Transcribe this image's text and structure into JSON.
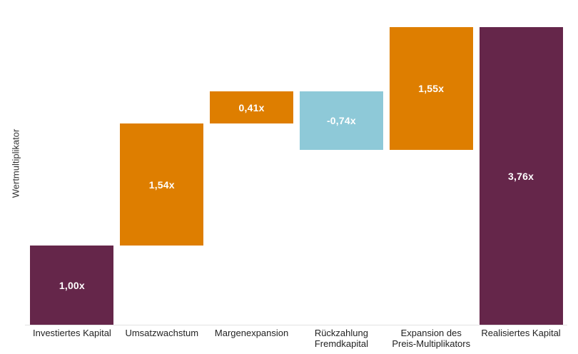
{
  "chart_data": {
    "type": "bar",
    "subtype": "waterfall",
    "title": "",
    "xlabel": "",
    "ylabel": "Wertmultiplikator",
    "ylim": [
      0,
      3.76
    ],
    "grid": false,
    "legend": false,
    "categories": [
      "Investiertes Kapital",
      "Umsatzwachstum",
      "Margenexpansion",
      "Rückzahlung Fremdkapital",
      "Expansion des Preis-Multiplikators",
      "Realisiertes Kapital"
    ],
    "bars": [
      {
        "category_lines": [
          "Investiertes Kapital"
        ],
        "value": 1.0,
        "label": "1,00x",
        "start": 0,
        "end": 1.0,
        "role": "total",
        "color": "#65264A"
      },
      {
        "category_lines": [
          "Umsatzwachstum"
        ],
        "value": 1.54,
        "label": "1,54x",
        "start": 1.0,
        "end": 2.54,
        "role": "increase",
        "color": "#DE7E00"
      },
      {
        "category_lines": [
          "Margenexpansion"
        ],
        "value": 0.41,
        "label": "0,41x",
        "start": 2.54,
        "end": 2.95,
        "role": "increase",
        "color": "#DE7E00"
      },
      {
        "category_lines": [
          "Rückzahlung",
          "Fremdkapital"
        ],
        "value": -0.74,
        "label": "-0,74x",
        "start": 2.95,
        "end": 2.21,
        "role": "decrease",
        "color": "#8EC9D8"
      },
      {
        "category_lines": [
          "Expansion des",
          "Preis-Multiplikators"
        ],
        "value": 1.55,
        "label": "1,55x",
        "start": 2.21,
        "end": 3.76,
        "role": "increase",
        "color": "#DE7E00"
      },
      {
        "category_lines": [
          "Realisiertes Kapital"
        ],
        "value": 3.76,
        "label": "3,76x",
        "start": 0,
        "end": 3.76,
        "role": "total",
        "color": "#65264A"
      }
    ],
    "colors": {
      "total": "#65264A",
      "increase": "#DE7E00",
      "decrease": "#8EC9D8",
      "value_label": "#FFFFFF",
      "tick_label": "#222222",
      "axis_line": "#E3E3E3"
    }
  }
}
